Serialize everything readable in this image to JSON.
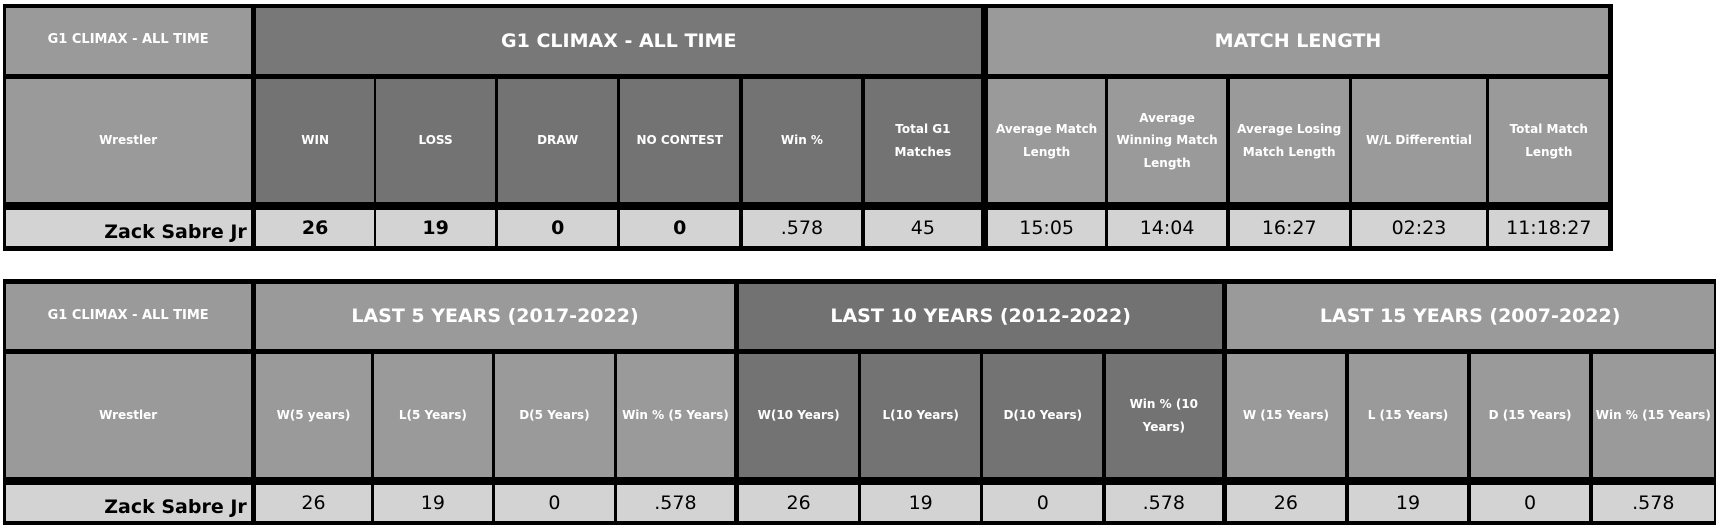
{
  "tables": [
    {
      "corner": {
        "title": "G1 CLIMAX - ALL TIME",
        "column": "Wrestler"
      },
      "groups": [
        {
          "title": "G1 CLIMAX - ALL TIME",
          "columns": [
            "WIN",
            "LOSS",
            "DRAW",
            "NO CONTEST",
            "Win %",
            "Total G1 Matches"
          ]
        },
        {
          "title": "MATCH LENGTH",
          "columns": [
            "Average Match Length",
            "Average Winning Match Length",
            "Average Losing Match Length",
            "W/L Differential",
            "Total Match Length"
          ]
        }
      ],
      "row": {
        "wrestler": "Zack Sabre Jr",
        "values": [
          "26",
          "19",
          "0",
          "0",
          ".578",
          "45",
          "15:05",
          "14:04",
          "16:27",
          "02:23",
          "11:18:27"
        ]
      }
    },
    {
      "corner": {
        "title": "G1 CLIMAX - ALL TIME",
        "column": "Wrestler"
      },
      "groups": [
        {
          "title": "LAST 5 YEARS (2017-2022)",
          "columns": [
            "W(5 years)",
            "L(5 Years)",
            "D(5 Years)",
            "Win % (5 Years)"
          ]
        },
        {
          "title": "LAST 10 YEARS (2012-2022)",
          "columns": [
            "W(10 Years)",
            "L(10 Years)",
            "D(10 Years)",
            "Win % (10 Years)"
          ]
        },
        {
          "title": "LAST 15 YEARS (2007-2022)",
          "columns": [
            "W (15 Years)",
            "L (15 Years)",
            "D (15 Years)",
            "Win % (15 Years)"
          ]
        }
      ],
      "row": {
        "wrestler": "Zack Sabre Jr",
        "values": [
          "26",
          "19",
          "0",
          ".578",
          "26",
          "19",
          "0",
          ".578",
          "26",
          "19",
          "0",
          ".578"
        ]
      }
    }
  ]
}
